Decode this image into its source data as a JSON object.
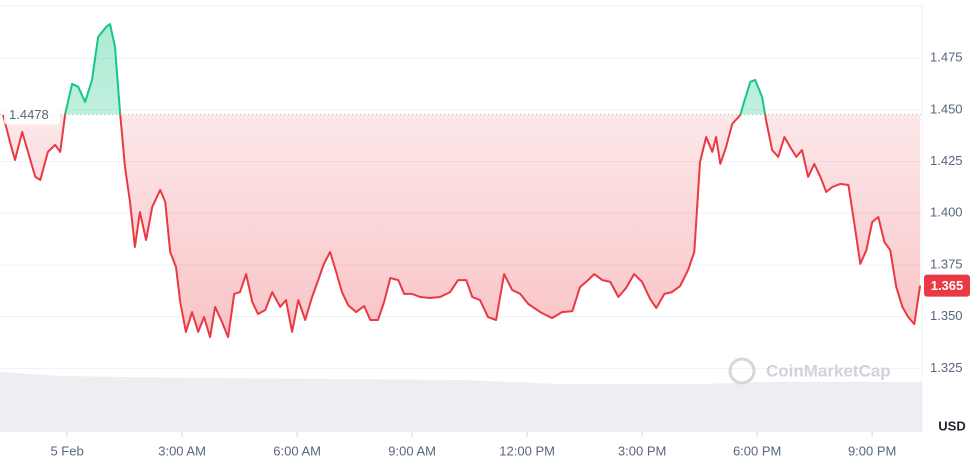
{
  "chart_data": {
    "type": "line",
    "x": [
      -1.67,
      -1.49,
      -1.36,
      -1.17,
      -1.02,
      -0.83,
      -0.7,
      -0.5,
      -0.31,
      -0.18,
      -0.05,
      0.13,
      0.29,
      0.47,
      0.65,
      0.81,
      1.02,
      1.12,
      1.25,
      1.38,
      1.51,
      1.64,
      1.77,
      1.9,
      2.06,
      2.22,
      2.43,
      2.56,
      2.69,
      2.84,
      2.95,
      3.1,
      3.26,
      3.42,
      3.57,
      3.73,
      3.86,
      4.04,
      4.2,
      4.36,
      4.51,
      4.67,
      4.83,
      4.98,
      5.17,
      5.35,
      5.56,
      5.71,
      5.87,
      6.03,
      6.21,
      6.39,
      6.55,
      6.7,
      6.86,
      7.02,
      7.17,
      7.33,
      7.54,
      7.75,
      7.91,
      8.11,
      8.27,
      8.43,
      8.64,
      8.79,
      9.0,
      9.21,
      9.47,
      9.73,
      9.99,
      10.2,
      10.41,
      10.57,
      10.77,
      10.98,
      11.19,
      11.4,
      11.61,
      11.82,
      12.03,
      12.34,
      12.65,
      12.91,
      13.18,
      13.38,
      13.59,
      13.75,
      13.96,
      14.17,
      14.38,
      14.58,
      14.79,
      15.0,
      15.21,
      15.37,
      15.58,
      15.78,
      15.99,
      16.2,
      16.36,
      16.51,
      16.67,
      16.83,
      16.93,
      17.04,
      17.19,
      17.35,
      17.56,
      17.66,
      17.82,
      17.95,
      18.13,
      18.24,
      18.39,
      18.55,
      18.71,
      18.86,
      19.02,
      19.17,
      19.33,
      19.49,
      19.65,
      19.8,
      19.96,
      20.17,
      20.38,
      20.53,
      20.69,
      20.85,
      21.0,
      21.16,
      21.32,
      21.47,
      21.63,
      21.79,
      21.94,
      22.1,
      22.25
    ],
    "series": [
      {
        "color": "#ea3943",
        "above_color": "#16c784",
        "values": [
          1.4476,
          1.4345,
          1.4258,
          1.4394,
          1.4297,
          1.4176,
          1.4161,
          1.4297,
          1.4331,
          1.4297,
          1.4481,
          1.4626,
          1.4612,
          1.4539,
          1.4645,
          1.4853,
          1.4902,
          1.4916,
          1.4805,
          1.449,
          1.4224,
          1.4055,
          1.3837,
          1.4006,
          1.3871,
          1.403,
          1.4113,
          1.4055,
          1.3813,
          1.374,
          1.3571,
          1.3426,
          1.3522,
          1.3426,
          1.3498,
          1.3401,
          1.3547,
          1.3474,
          1.3401,
          1.361,
          1.3619,
          1.3706,
          1.3571,
          1.3513,
          1.3532,
          1.3619,
          1.3547,
          1.358,
          1.3426,
          1.358,
          1.3484,
          1.3595,
          1.3677,
          1.3755,
          1.3813,
          1.3716,
          1.3619,
          1.3556,
          1.3522,
          1.3551,
          1.3484,
          1.3484,
          1.3571,
          1.3687,
          1.3677,
          1.361,
          1.361,
          1.3595,
          1.359,
          1.3595,
          1.3619,
          1.3677,
          1.3677,
          1.3595,
          1.358,
          1.3498,
          1.3484,
          1.3706,
          1.3629,
          1.361,
          1.3561,
          1.3522,
          1.3493,
          1.3522,
          1.3527,
          1.3643,
          1.3677,
          1.3706,
          1.3677,
          1.3668,
          1.3595,
          1.3638,
          1.3706,
          1.3668,
          1.3585,
          1.3542,
          1.361,
          1.3619,
          1.3648,
          1.3726,
          1.3813,
          1.4248,
          1.4369,
          1.4297,
          1.4369,
          1.4239,
          1.4321,
          1.4432,
          1.4476,
          1.4539,
          1.4636,
          1.4645,
          1.4563,
          1.4442,
          1.4306,
          1.4273,
          1.4369,
          1.4321,
          1.4273,
          1.4306,
          1.4176,
          1.4239,
          1.4176,
          1.4103,
          1.4127,
          1.4142,
          1.4137,
          1.3958,
          1.3755,
          1.3822,
          1.3958,
          1.3982,
          1.3861,
          1.3822,
          1.3643,
          1.3547,
          1.3498,
          1.3464,
          1.365
        ]
      }
    ],
    "baseline": 1.4478,
    "xlim": [
      -1.75,
      22.3
    ],
    "xticks": [
      {
        "value": 0,
        "label": "5 Feb"
      },
      {
        "value": 3,
        "label": "3:00 AM"
      },
      {
        "value": 6,
        "label": "6:00 AM"
      },
      {
        "value": 9,
        "label": "9:00 AM"
      },
      {
        "value": 12,
        "label": "12:00 PM"
      },
      {
        "value": 15,
        "label": "3:00 PM"
      },
      {
        "value": 18,
        "label": "6:00 PM"
      },
      {
        "value": 21,
        "label": "9:00 PM"
      }
    ],
    "ylim": [
      1.3,
      1.5
    ],
    "yticks": [
      1.325,
      {
        "value": 1.35,
        "label": "1.350"
      },
      1.375,
      {
        "value": 1.4,
        "label": "1.400"
      },
      1.425,
      {
        "value": 1.45,
        "label": "1.450"
      },
      1.475
    ],
    "y_axis_label": "USD",
    "watermark": "CoinMarketCap",
    "grid": true
  }
}
